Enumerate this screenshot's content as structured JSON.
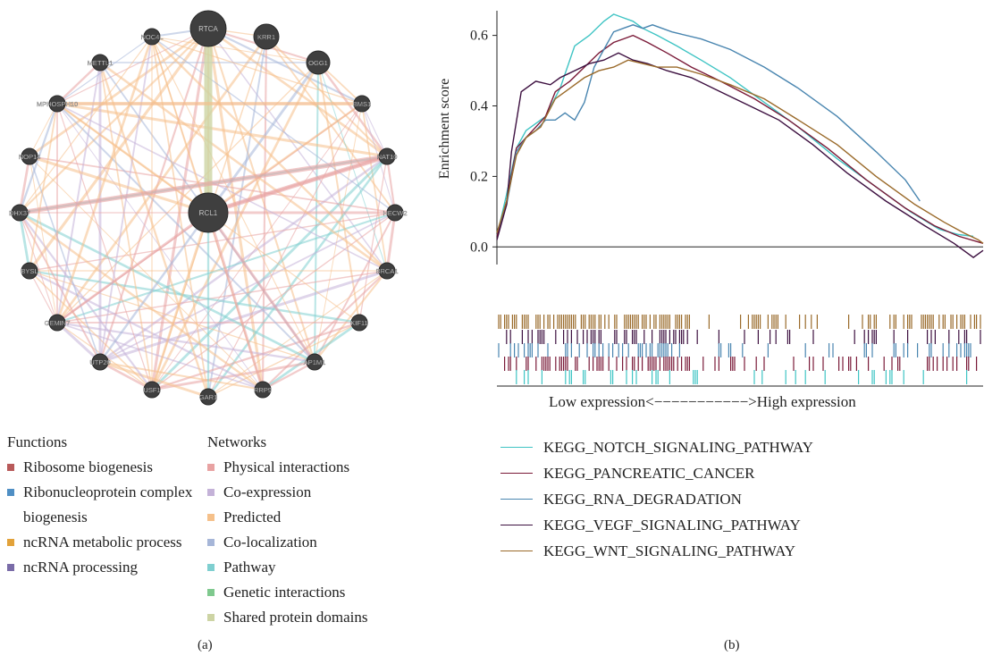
{
  "colors": {
    "physical": "#e8a2a2",
    "coexpression": "#c4b2d8",
    "predicted": "#f5c08a",
    "colocalization": "#a6b6d8",
    "pathway": "#7fcfd0",
    "genetic": "#7fc98e",
    "shared": "#cdd4a4",
    "node": "#3f3f3f"
  },
  "network": {
    "center_node": "RCL1",
    "nodes": [
      "RTCA",
      "KRR1",
      "OGG1",
      "BMS1",
      "NAT10",
      "HECW2",
      "BRCA1",
      "KIF11",
      "AP1M1",
      "RRP9",
      "GAR1",
      "USF1",
      "UTP20",
      "GEMIN7",
      "BYSL",
      "DHX37",
      "NOP14",
      "MPHOSPH10",
      "METTL1",
      "NOC4L"
    ]
  },
  "functions": {
    "title": "Functions",
    "items": [
      {
        "label": "Ribosome biogenesis",
        "color": "#b85a5a"
      },
      {
        "label": "Ribonucleoprotein complex biogenesis",
        "color": "#4f8fc4"
      },
      {
        "label": "ncRNA metabolic process",
        "color": "#e2a23a"
      },
      {
        "label": "ncRNA processing",
        "color": "#7a6ca8"
      }
    ]
  },
  "networks": {
    "title": "Networks",
    "items": [
      {
        "label": "Physical interactions",
        "color": "#e8a2a2"
      },
      {
        "label": "Co-expression",
        "color": "#c4b2d8"
      },
      {
        "label": "Predicted",
        "color": "#f5c08a"
      },
      {
        "label": "Co-localization",
        "color": "#a6b6d8"
      },
      {
        "label": "Pathway",
        "color": "#7fcfd0"
      },
      {
        "label": "Genetic interactions",
        "color": "#7fc98e"
      },
      {
        "label": "Shared protein domains",
        "color": "#cdd4a4"
      }
    ]
  },
  "panel_labels": {
    "a": "(a)",
    "b": "(b)"
  },
  "chart_data": {
    "type": "line",
    "ylabel": "Enrichment score",
    "xlabel": "Low expression<−−−−−−−−−−−>High expression",
    "ylim": [
      -0.05,
      0.67
    ],
    "xlim": [
      0,
      100
    ],
    "yticks": [
      "0.0",
      "0.2",
      "0.4",
      "0.6"
    ],
    "series": [
      {
        "name": "KEGG_NOTCH_SIGNALING_PATHWAY",
        "color": "#3fc4c4",
        "x": [
          0,
          2,
          4,
          6,
          8,
          10,
          13,
          16,
          19,
          22,
          24,
          26,
          28,
          30,
          33,
          37,
          42,
          48,
          55,
          62,
          70,
          78,
          85,
          91,
          95,
          98
        ],
        "y": [
          0.03,
          0.15,
          0.28,
          0.33,
          0.35,
          0.37,
          0.45,
          0.57,
          0.6,
          0.64,
          0.66,
          0.65,
          0.64,
          0.62,
          0.6,
          0.57,
          0.53,
          0.48,
          0.41,
          0.34,
          0.25,
          0.17,
          0.1,
          0.05,
          0.035,
          0.03
        ]
      },
      {
        "name": "KEGG_PANCREATIC_CANCER",
        "color": "#7a1a38",
        "x": [
          0,
          2,
          4,
          6,
          8,
          10,
          12,
          15,
          18,
          21,
          24,
          26,
          28,
          31,
          35,
          40,
          46,
          53,
          60,
          68,
          76,
          84,
          90,
          95,
          100
        ],
        "y": [
          0.03,
          0.13,
          0.28,
          0.31,
          0.34,
          0.37,
          0.44,
          0.47,
          0.51,
          0.55,
          0.58,
          0.59,
          0.6,
          0.58,
          0.55,
          0.51,
          0.47,
          0.42,
          0.36,
          0.28,
          0.19,
          0.11,
          0.06,
          0.03,
          0.01
        ]
      },
      {
        "name": "KEGG_RNA_DEGRADATION",
        "color": "#4a86b0",
        "x": [
          0,
          2,
          4,
          6,
          8,
          10,
          12,
          14,
          16,
          18,
          20,
          22,
          24,
          26,
          28,
          30,
          32,
          36,
          42,
          48,
          55,
          62,
          70,
          78,
          84,
          87
        ],
        "y": [
          0.04,
          0.12,
          0.27,
          0.31,
          0.33,
          0.36,
          0.36,
          0.38,
          0.36,
          0.41,
          0.51,
          0.56,
          0.61,
          0.62,
          0.63,
          0.62,
          0.63,
          0.61,
          0.59,
          0.56,
          0.51,
          0.45,
          0.37,
          0.27,
          0.19,
          0.13
        ]
      },
      {
        "name": "KEGG_VEGF_SIGNALING_PATHWAY",
        "color": "#3d1040",
        "x": [
          0,
          2,
          3,
          5,
          8,
          11,
          13,
          16,
          19,
          22,
          25,
          28,
          31,
          35,
          40,
          46,
          52,
          58,
          65,
          72,
          80,
          88,
          94,
          98,
          100
        ],
        "y": [
          0.02,
          0.12,
          0.27,
          0.44,
          0.47,
          0.46,
          0.48,
          0.5,
          0.52,
          0.53,
          0.55,
          0.53,
          0.52,
          0.5,
          0.48,
          0.44,
          0.4,
          0.36,
          0.29,
          0.21,
          0.13,
          0.06,
          0.01,
          -0.03,
          -0.01
        ]
      },
      {
        "name": "KEGG_WNT_SIGNALING_PATHWAY",
        "color": "#9a6a2a",
        "x": [
          0,
          2,
          4,
          6,
          9,
          12,
          15,
          18,
          21,
          24,
          27,
          30,
          33,
          37,
          42,
          48,
          55,
          62,
          70,
          78,
          86,
          92,
          96,
          99,
          100
        ],
        "y": [
          0.04,
          0.13,
          0.26,
          0.31,
          0.34,
          0.42,
          0.45,
          0.48,
          0.5,
          0.51,
          0.53,
          0.52,
          0.51,
          0.51,
          0.49,
          0.46,
          0.42,
          0.36,
          0.29,
          0.2,
          0.12,
          0.07,
          0.04,
          0.02,
          0.01
        ]
      }
    ]
  }
}
